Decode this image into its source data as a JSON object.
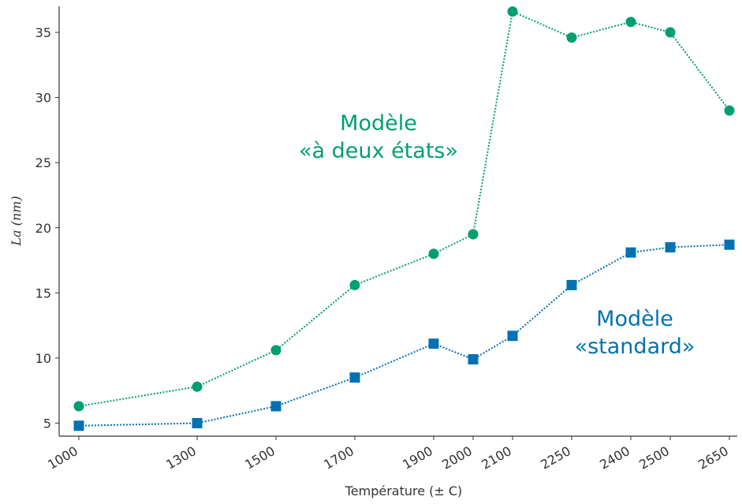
{
  "chart_data": {
    "type": "line",
    "xlabel": "Température (± C)",
    "ylabel": "La (nm)",
    "x": [
      1000,
      1300,
      1500,
      1700,
      1900,
      2000,
      2100,
      2250,
      2400,
      2500,
      2650
    ],
    "xlim": [
      950,
      2670
    ],
    "xticks": [
      1000,
      1300,
      1500,
      1700,
      1900,
      2000,
      2100,
      2250,
      2400,
      2500,
      2650
    ],
    "ylim": [
      4,
      37
    ],
    "yticks": [
      5,
      10,
      15,
      20,
      25,
      30,
      35
    ],
    "series": [
      {
        "color": "#009e73",
        "marker": "circle",
        "values": [
          6.3,
          7.8,
          10.6,
          15.6,
          18.0,
          19.5,
          36.6,
          34.6,
          35.8,
          35.0,
          29.0
        ]
      },
      {
        "color": "#0072b2",
        "marker": "square",
        "values": [
          4.8,
          5.0,
          6.3,
          8.5,
          11.1,
          9.9,
          11.7,
          15.6,
          18.1,
          18.5,
          18.7
        ]
      }
    ],
    "annotations": [
      {
        "lines": [
          "Modèle",
          "«à deux états»"
        ],
        "color": "#009e73"
      },
      {
        "lines": [
          "Modèle",
          "«standard»"
        ],
        "color": "#0072b2"
      }
    ]
  }
}
